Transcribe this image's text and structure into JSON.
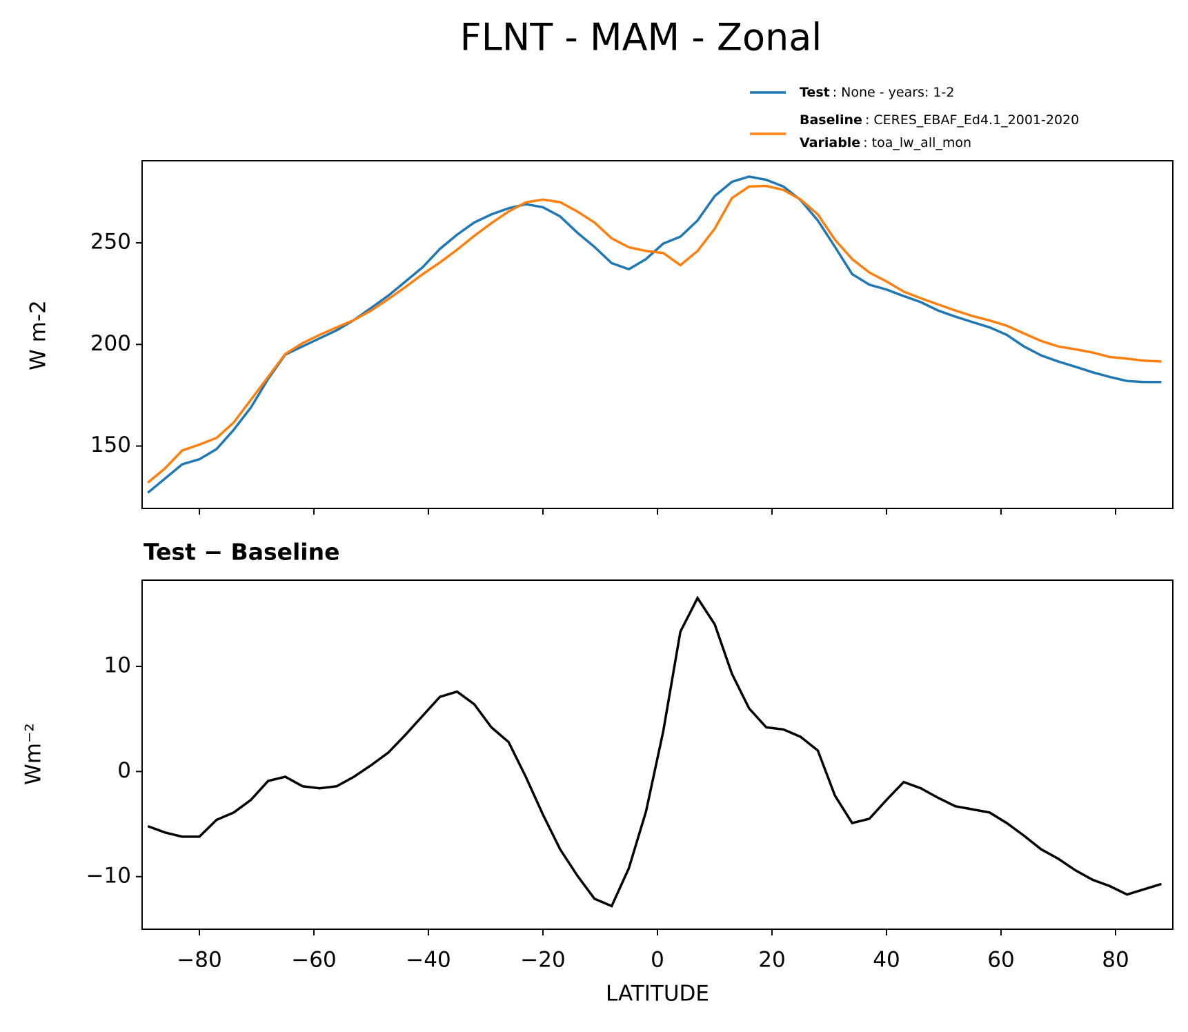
{
  "chart_data": [
    {
      "type": "line",
      "title": "FLNT - MAM - Zonal",
      "ylabel": "W m-2",
      "x": [
        -89,
        -86,
        -83,
        -80,
        -77,
        -74,
        -71,
        -68,
        -65,
        -62,
        -59,
        -56,
        -53,
        -50,
        -47,
        -44,
        -41,
        -38,
        -35,
        -32,
        -29,
        -26,
        -23,
        -20,
        -17,
        -14,
        -11,
        -8,
        -5,
        -2,
        1,
        4,
        7,
        10,
        13,
        16,
        19,
        22,
        25,
        28,
        31,
        34,
        37,
        40,
        43,
        46,
        49,
        52,
        55,
        58,
        61,
        64,
        67,
        70,
        73,
        76,
        79,
        82,
        85,
        88
      ],
      "series": [
        {
          "name": "Test",
          "label": ": None - years: 1-2",
          "color": "#1f77b4",
          "values": [
            127,
            134,
            141,
            143.5,
            148.5,
            158,
            169,
            183,
            195,
            199,
            203,
            207,
            212,
            218,
            224,
            231,
            238,
            247,
            254,
            260,
            264,
            267,
            269,
            267.5,
            263,
            255,
            248,
            240,
            237,
            242,
            249.6,
            253,
            261,
            273,
            280,
            282.6,
            281,
            277.7,
            271,
            261,
            248,
            234.6,
            229.4,
            227,
            223.8,
            220.8,
            216.7,
            213.7,
            211,
            208.4,
            204.7,
            199,
            194.6,
            191.6,
            189,
            186.3,
            184,
            182,
            181.5,
            181.5
          ]
        },
        {
          "name": "Baseline",
          "label": ": CERES_EBAF_Ed4.1_2001-2020",
          "color": "#ff7f0e",
          "values": [
            132,
            139,
            147.8,
            150.7,
            154,
            161.6,
            172.8,
            184,
            195.3,
            200.6,
            204.7,
            208.4,
            212,
            216.7,
            222.3,
            228.3,
            234.6,
            240.3,
            246.6,
            253.4,
            259.7,
            265.4,
            269.9,
            271.3,
            270,
            265.4,
            260,
            252.2,
            247.8,
            246,
            245,
            239,
            246,
            257,
            272,
            277.7,
            278,
            276,
            271.3,
            264,
            251.5,
            242,
            235.4,
            231,
            226,
            222.7,
            219.7,
            216.7,
            214,
            211.8,
            209.2,
            205.4,
            201.7,
            199,
            197.6,
            196,
            193.8,
            193,
            192,
            191.6
          ]
        }
      ],
      "legend_extra": {
        "name": "Variable",
        "label": ": toa_lw_all_mon"
      },
      "xlim": [
        -90,
        90
      ],
      "xticks": [
        -80,
        -60,
        -40,
        -20,
        0,
        20,
        40,
        60,
        80
      ],
      "ylim": [
        119.3,
        290.4
      ],
      "yticks": [
        150,
        200,
        250
      ]
    },
    {
      "type": "line",
      "title": "Test − Baseline",
      "ylabel": "Wm⁻²",
      "xlabel": "LATITUDE",
      "color": "#000000",
      "x": [
        -89,
        -86,
        -83,
        -80,
        -77,
        -74,
        -71,
        -68,
        -65,
        -62,
        -59,
        -56,
        -53,
        -50,
        -47,
        -44,
        -41,
        -38,
        -35,
        -32,
        -29,
        -26,
        -23,
        -20,
        -17,
        -14,
        -11,
        -8,
        -5,
        -2,
        1,
        4,
        7,
        10,
        13,
        16,
        19,
        22,
        25,
        28,
        31,
        34,
        37,
        40,
        43,
        46,
        49,
        52,
        55,
        58,
        61,
        64,
        67,
        70,
        73,
        76,
        79,
        82,
        85,
        88
      ],
      "values": [
        -5.2,
        -5.8,
        -6.2,
        -6.2,
        -4.6,
        -3.9,
        -2.7,
        -0.9,
        -0.5,
        -1.4,
        -1.6,
        -1.4,
        -0.5,
        0.6,
        1.8,
        3.5,
        5.3,
        7.1,
        7.6,
        6.4,
        4.2,
        2.8,
        -0.5,
        -4.1,
        -7.4,
        -9.9,
        -12.1,
        -12.8,
        -9.2,
        -3.8,
        3.8,
        13.3,
        16.5,
        14,
        9.3,
        6,
        4.2,
        4,
        3.3,
        2,
        -2.3,
        -4.9,
        -4.5,
        -2.7,
        -1,
        -1.6,
        -2.5,
        -3.3,
        -3.6,
        -3.9,
        -4.9,
        -6.1,
        -7.4,
        -8.3,
        -9.4,
        -10.3,
        -10.9,
        -11.7,
        -11.2,
        -10.7
      ],
      "xlim": [
        -90,
        90
      ],
      "xticks": [
        {
          "value": -80,
          "label": "−80"
        },
        {
          "value": -60,
          "label": "−60"
        },
        {
          "value": -40,
          "label": "−40"
        },
        {
          "value": -20,
          "label": "−20"
        },
        0,
        20,
        40,
        60,
        80
      ],
      "ylim": [
        -15,
        18.2
      ],
      "yticks": [
        {
          "value": -10,
          "label": "−10"
        },
        0,
        10
      ]
    }
  ]
}
